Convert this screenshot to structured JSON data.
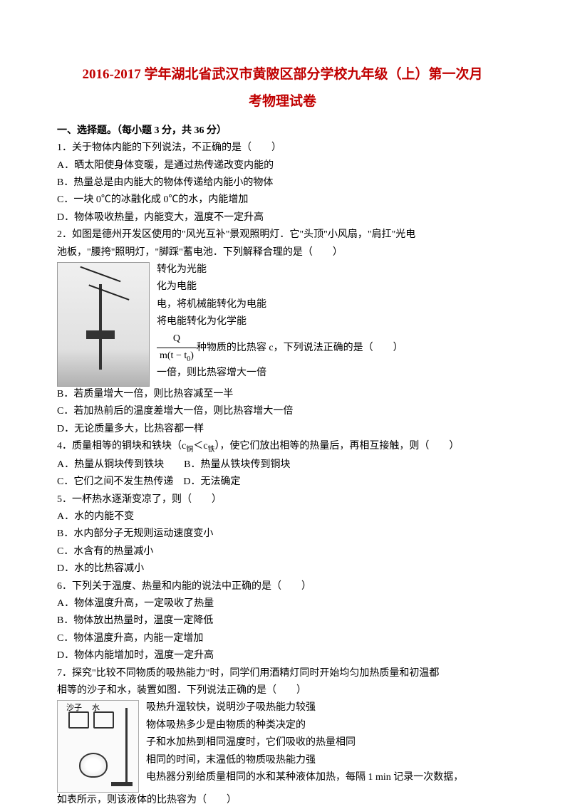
{
  "title_line1": "2016-2017 学年湖北省武汉市黄陂区部分学校九年级（上）第一次月",
  "title_line2": "考物理试卷",
  "section1_header": "一、选择题。（每小题 3 分，共 36 分）",
  "q1": {
    "stem": "1．关于物体内能的下列说法，不正确的是（　　）",
    "A": "A．晒太阳使身体变暖，是通过热传递改变内能的",
    "B": "B．热量总是由内能大的物体传递给内能小的物体",
    "C": "C．一块 0℃的冰融化成 0℃的水，内能增加",
    "D": "D．物体吸收热量，内能变大，温度不一定升高"
  },
  "q2": {
    "stem1": "2．如图是德州开发区使用的\"风光互补\"景观照明灯．它\"头顶\"小风扇，\"肩扛\"光电",
    "stem2": "池板，\"腰挎\"照明灯，\"脚踩\"蓄电池．下列解释合理的是（　　）",
    "A": "转化为光能",
    "B": "化为电能",
    "C": "电，将机械能转化为电能",
    "D": "将电能转化为化学能"
  },
  "q3": {
    "stem_prefix": "",
    "formula_top": "Q",
    "formula_bottom_pre": "m(t − t",
    "formula_bottom_sub": "0",
    "formula_bottom_post": ")",
    "stem_suffix": "种物质的比热容 c，下列说法正确的是（　　）",
    "A_tail": "一倍，则比热容增大一倍",
    "B": "B．若质量增大一倍，则比热容减至一半",
    "C": "C．若加热前后的温度差增大一倍，则比热容增大一倍",
    "D": "D．无论质量多大，比热容都一样"
  },
  "q4": {
    "stem_pre": "4．质量相等的铜块和铁块（c",
    "sub1": "铜",
    "stem_mid": "＜c",
    "sub2": "铁",
    "stem_post": "），使它们放出相等的热量后，再相互接触，则（　　）",
    "A": "A．热量从铜块传到铁块",
    "B": "B．热量从铁块传到铜块",
    "C": "C．它们之间不发生热传递",
    "D": "D．无法确定"
  },
  "q5": {
    "stem": "5．一杯热水逐渐变凉了，则（　　）",
    "A": "A．水的内能不变",
    "B": "B．水内部分子无规则运动速度变小",
    "C": "C．水含有的热量减小",
    "D": "D．水的比热容减小"
  },
  "q6": {
    "stem": "6．下列关于温度、热量和内能的说法中正确的是（　　）",
    "A": "A．物体温度升高，一定吸收了热量",
    "B": "B．物体放出热量时，温度一定降低",
    "C": "C．物体温度升高，内能一定增加",
    "D": "D．物体内能增加时，温度一定升高"
  },
  "q7": {
    "stem1": "7．探究\"比较不同物质的吸热能力\"时，同学们用酒精灯同时开始均匀加热质量和初温都",
    "stem2": "相等的沙子和水，装置如图．下列说法正确的是（　　）",
    "A": "吸热升温较快，说明沙子吸热能力较强",
    "B": "物体吸热多少是由物质的种类决定的",
    "C": "子和水加热到相同温度时，它们吸收的热量相同",
    "D": "相同的时间，末温低的物质吸热能力强"
  },
  "q8": {
    "stem1": "电热器分别给质量相同的水和某种液体加热，每隔 1 min 记录一次数据，",
    "stem2": "如表所示，则该液体的比热容为（　　）",
    "label_sand": "沙子",
    "label_water": "水"
  }
}
